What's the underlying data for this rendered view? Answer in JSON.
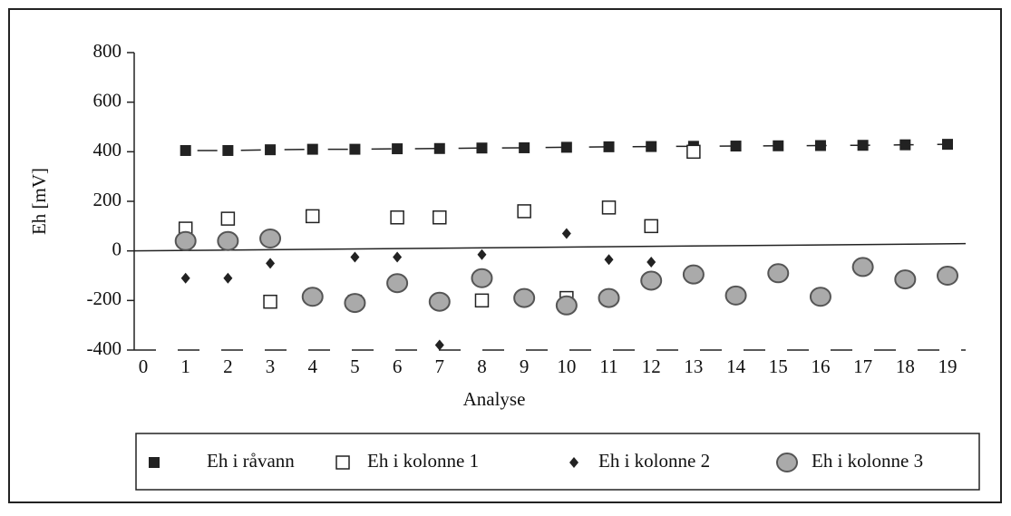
{
  "chart_data": {
    "type": "scatter",
    "y_label": "Eh [mV]",
    "x_label": "Analyse",
    "x": [
      1,
      2,
      3,
      4,
      5,
      6,
      7,
      8,
      9,
      10,
      11,
      12,
      13,
      14,
      15,
      16,
      17,
      18,
      19
    ],
    "xlim": [
      0,
      19
    ],
    "xticks": [
      0,
      1,
      2,
      3,
      4,
      5,
      6,
      7,
      8,
      9,
      10,
      11,
      12,
      13,
      14,
      15,
      16,
      17,
      18,
      19
    ],
    "ylim": [
      -400,
      800
    ],
    "yticks": [
      800,
      600,
      400,
      200,
      0,
      -200,
      -400
    ],
    "legend": "bottom",
    "series": [
      {
        "name": "Eh i råvann",
        "color": "#222222",
        "marker": "square",
        "line": "dashed",
        "values": [
          405,
          405,
          408,
          410,
          410,
          412,
          413,
          415,
          416,
          418,
          420,
          421,
          422,
          423,
          424,
          425,
          426,
          428,
          430
        ]
      },
      {
        "name": "Eh i kolonne 1",
        "color": "#222222",
        "marker": "open-square",
        "values": [
          90,
          130,
          -205,
          140,
          -205,
          135,
          135,
          -200,
          160,
          -190,
          175,
          100,
          400,
          null,
          null,
          null,
          null,
          null,
          null
        ]
      },
      {
        "name": "Eh i kolonne 2",
        "color": "#222222",
        "marker": "diamond",
        "values": [
          -110,
          -110,
          -50,
          null,
          -25,
          -25,
          -380,
          -15,
          null,
          70,
          -35,
          -45,
          null,
          null,
          null,
          null,
          null,
          null,
          null
        ]
      },
      {
        "name": "Eh i kolonne 3",
        "color": "#555555",
        "marker": "circle",
        "values": [
          40,
          40,
          50,
          -185,
          -210,
          -130,
          -205,
          -110,
          -190,
          -220,
          -190,
          -120,
          -95,
          -180,
          -90,
          -185,
          -65,
          -115,
          -100
        ]
      }
    ]
  }
}
